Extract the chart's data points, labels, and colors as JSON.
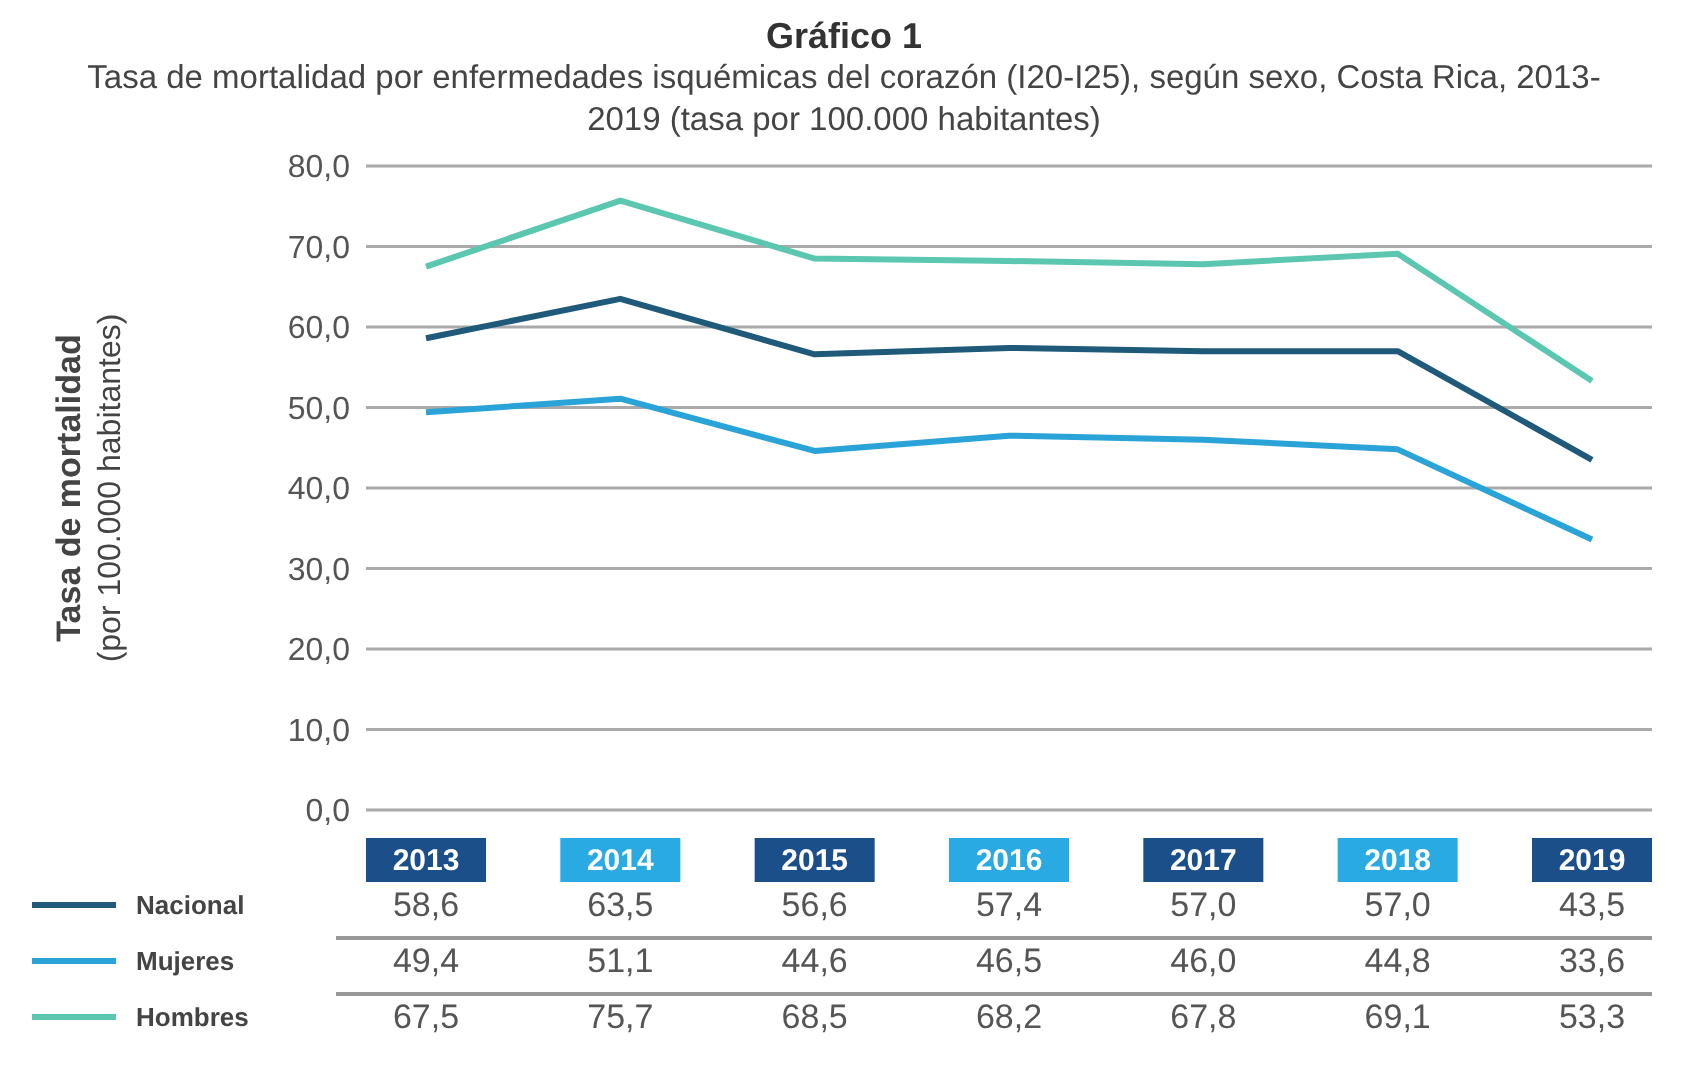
{
  "chart_data": {
    "type": "line",
    "title": "Gráfico 1",
    "subtitle": "Tasa de mortalidad por enfermedades isquémicas del corazón (I20-I25), según sexo, Costa Rica, 2013-2019 (tasa por 100.000 habitantes)",
    "ylabel": "Tasa de mortalidad\n(por 100.000 habitantes)",
    "categories": [
      "2013",
      "2014",
      "2015",
      "2016",
      "2017",
      "2018",
      "2019"
    ],
    "series": [
      {
        "name": "Nacional",
        "color": "#1f5a7a",
        "values": [
          58.6,
          63.5,
          56.6,
          57.4,
          57.0,
          57.0,
          43.5
        ],
        "value_labels": [
          "58,6",
          "63,5",
          "56,6",
          "57,4",
          "57,0",
          "57,0",
          "43,5"
        ]
      },
      {
        "name": "Mujeres",
        "color": "#29a3d8",
        "values": [
          49.4,
          51.1,
          44.6,
          46.5,
          46.0,
          44.8,
          33.6
        ],
        "value_labels": [
          "49,4",
          "51,1",
          "44,6",
          "46,5",
          "46,0",
          "44,8",
          "33,6"
        ]
      },
      {
        "name": "Hombres",
        "color": "#5cc7b0",
        "values": [
          67.5,
          75.7,
          68.5,
          68.2,
          67.8,
          69.1,
          53.3
        ],
        "value_labels": [
          "67,5",
          "75,7",
          "68,5",
          "68,2",
          "67,8",
          "69,1",
          "53,3"
        ]
      }
    ],
    "ylim": [
      0,
      80
    ],
    "yticks": [
      {
        "value": 0,
        "label": "0,0"
      },
      {
        "value": 10,
        "label": "10,0"
      },
      {
        "value": 20,
        "label": "20,0"
      },
      {
        "value": 30,
        "label": "30,0"
      },
      {
        "value": 40,
        "label": "40,0"
      },
      {
        "value": 50,
        "label": "50,0"
      },
      {
        "value": 60,
        "label": "60,0"
      },
      {
        "value": 70,
        "label": "70,0"
      },
      {
        "value": 80,
        "label": "80,0"
      }
    ],
    "grid": "y",
    "legend": "bottom",
    "marker": "none",
    "line_style": "solid"
  }
}
